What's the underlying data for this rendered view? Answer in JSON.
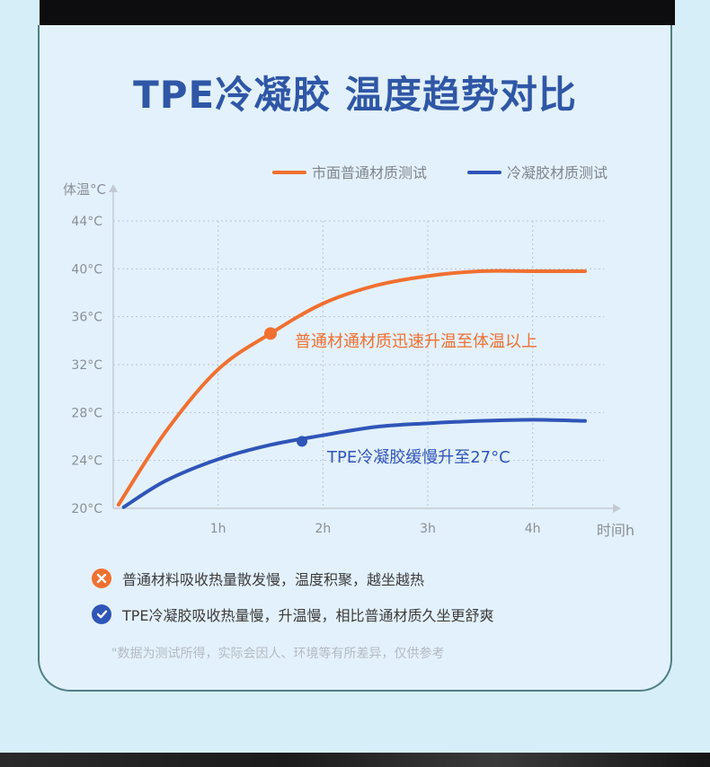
{
  "title": "TPE冷凝胶 温度趋势对比",
  "colors": {
    "market": "#f07030",
    "tpe": "#2f55b8",
    "accent_title": "#2f57a6"
  },
  "notes": [
    {
      "icon": "x-circle-icon",
      "text": "普通材料吸收热量散发慢，温度积聚，越坐越热"
    },
    {
      "icon": "check-circle-icon",
      "text": "TPE冷凝胶吸收热量慢，升温慢，相比普通材质久坐更舒爽"
    }
  ],
  "disclaimer": "\"数据为测试所得，实际会因人、环境等有所差异，仅供参考",
  "chart_data": {
    "type": "line",
    "title": "TPE冷凝胶 温度趋势对比",
    "xlabel": "时间h",
    "ylabel": "体温°C",
    "x_ticks": [
      "1h",
      "2h",
      "3h",
      "4h"
    ],
    "x_tick_values": [
      1,
      2,
      3,
      4
    ],
    "y_ticks": [
      "20°C",
      "24°C",
      "28°C",
      "32°C",
      "36°C",
      "40°C",
      "44°C"
    ],
    "y_tick_values": [
      20,
      24,
      28,
      32,
      36,
      40,
      44
    ],
    "xlim": [
      0,
      4.8
    ],
    "ylim": [
      20,
      44
    ],
    "grid": true,
    "legend": "top-right",
    "series": [
      {
        "name": "市面普通材质测试",
        "color": "#f07030",
        "x": [
          0.05,
          0.5,
          1.0,
          1.5,
          2.0,
          2.5,
          3.0,
          3.5,
          4.0,
          4.5
        ],
        "y": [
          20.3,
          26.4,
          31.6,
          34.6,
          37.1,
          38.6,
          39.4,
          39.8,
          39.8,
          39.8
        ],
        "marker": {
          "x": 1.5,
          "y": 34.6
        },
        "annotation": "普通材通材质迅速升温至体温以上"
      },
      {
        "name": "冷凝胶材质测试",
        "color": "#2f55b8",
        "x": [
          0.1,
          0.5,
          1.0,
          1.5,
          2.0,
          2.5,
          3.0,
          3.5,
          4.0,
          4.5
        ],
        "y": [
          20.1,
          22.3,
          24.1,
          25.3,
          26.1,
          26.8,
          27.1,
          27.3,
          27.4,
          27.3
        ],
        "marker": {
          "x": 1.8,
          "y": 25.6
        },
        "annotation": "TPE冷凝胶缓慢升至27°C"
      }
    ]
  }
}
